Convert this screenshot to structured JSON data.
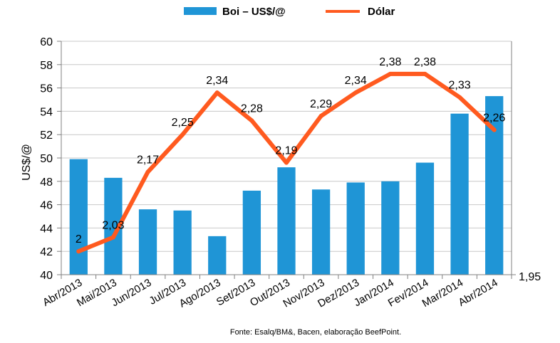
{
  "chart_data": {
    "type": "bar+line",
    "categories": [
      "Abr/2013",
      "Mai/2013",
      "Jun/2013",
      "Jul/2013",
      "Ago/2013",
      "Set/2013",
      "Out/2013",
      "Nov/2013",
      "Dez/2013",
      "Jan/2014",
      "Fev/2014",
      "Mar/2014",
      "Abr/2014"
    ],
    "series": [
      {
        "name": "Boi – US$/@",
        "type": "bar",
        "axis": "left",
        "color": "#1f95d6",
        "values": [
          49.9,
          48.3,
          45.6,
          45.5,
          43.3,
          47.2,
          49.2,
          47.3,
          47.9,
          48.0,
          49.6,
          53.8,
          55.3
        ]
      },
      {
        "name": "Dólar",
        "type": "line",
        "axis": "right",
        "color": "#ff5a1f",
        "values": [
          2.0,
          2.03,
          2.17,
          2.25,
          2.34,
          2.28,
          2.19,
          2.29,
          2.34,
          2.38,
          2.38,
          2.33,
          2.26
        ],
        "labels": [
          "2",
          "2,03",
          "2,17",
          "2,25",
          "2,34",
          "2,28",
          "2,19",
          "2,29",
          "2,34",
          "2,38",
          "2,38",
          "2,33",
          "2,26"
        ]
      }
    ],
    "ylabel": "US$/@",
    "ylim": [
      40,
      60
    ],
    "yticks": [
      "40",
      "42",
      "44",
      "46",
      "48",
      "50",
      "52",
      "54",
      "56",
      "58",
      "60"
    ],
    "y2lim": [
      1.95,
      2.45
    ],
    "y2ticks": [
      "1,95"
    ],
    "grid": true,
    "legend": "top-center",
    "source": "Fonte:  Esalq/BM&,  Bacen,  elaboração  BeefPoint."
  }
}
